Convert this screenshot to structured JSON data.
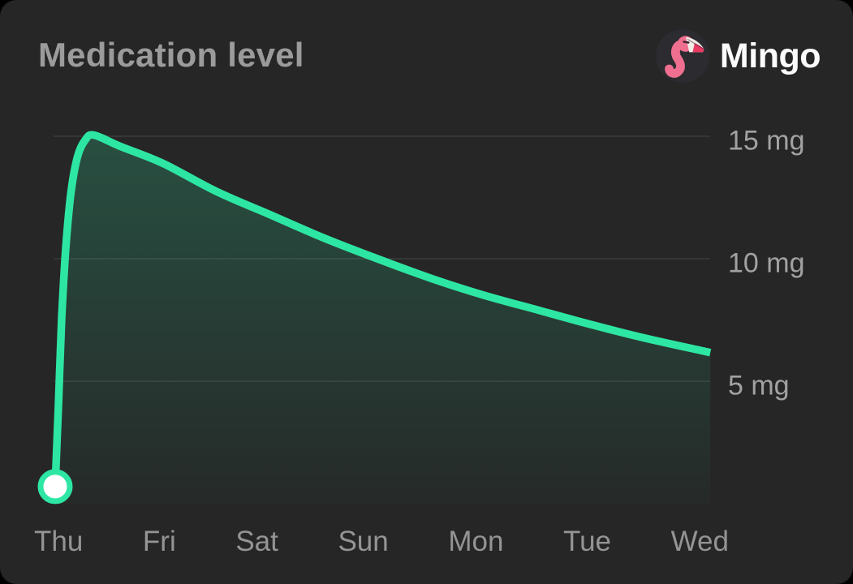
{
  "header": {
    "title": "Medication level",
    "brand": {
      "name": "Mingo",
      "icon": "flamingo-icon"
    }
  },
  "colors": {
    "outer_background": "#000000",
    "card_background": "#262626",
    "title_text": "#9b9b9b",
    "brand_text": "#fbfbfb",
    "y_axis_text": "#a2a2a2",
    "x_axis_text": "#949494",
    "gridline": "rgba(255,255,255,0.10)",
    "line": "#2ee6a4",
    "area_top": "rgba(46,230,164,0.22)",
    "area_bottom": "rgba(46,230,164,0.02)",
    "marker_fill": "#ffffff",
    "flamingo_bg": "#2b2b30",
    "flamingo_pink": "#ef6f90",
    "flamingo_beak": "#f2ece6",
    "flamingo_beak_tip": "#ea3a62",
    "flamingo_eye": "#3a2230"
  },
  "chart_data": {
    "type": "area",
    "title": "Medication level",
    "unit": "mg",
    "x_labels": [
      "Thu",
      "Fri",
      "Sat",
      "Sun",
      "Mon",
      "Tue",
      "Wed"
    ],
    "y_ticks": [
      {
        "value": 15,
        "label": "15 mg"
      },
      {
        "value": 10,
        "label": "10 mg"
      },
      {
        "value": 5,
        "label": "5 mg"
      }
    ],
    "ylim": [
      0,
      16.3
    ],
    "x_range_days": [
      0,
      6.1
    ],
    "grid": "horizontal",
    "legend": false,
    "y_axis_side": "right",
    "series": [
      {
        "name": "medication-level-mg",
        "points_day_mg": [
          [
            0,
            0.7
          ],
          [
            0.03,
            4.0
          ],
          [
            0.06,
            7.5
          ],
          [
            0.1,
            10.5
          ],
          [
            0.15,
            12.8
          ],
          [
            0.21,
            14.2
          ],
          [
            0.28,
            14.85
          ],
          [
            0.36,
            15.05
          ],
          [
            0.6,
            14.6
          ],
          [
            1,
            13.9
          ],
          [
            1.5,
            12.75
          ],
          [
            2,
            11.8
          ],
          [
            2.5,
            10.85
          ],
          [
            3,
            10.0
          ],
          [
            3.5,
            9.2
          ],
          [
            4,
            8.5
          ],
          [
            4.5,
            7.9
          ],
          [
            5,
            7.3
          ],
          [
            5.5,
            6.75
          ],
          [
            6.1,
            6.17
          ]
        ],
        "start_marker_day_mg": [
          0,
          0.7
        ]
      }
    ]
  }
}
